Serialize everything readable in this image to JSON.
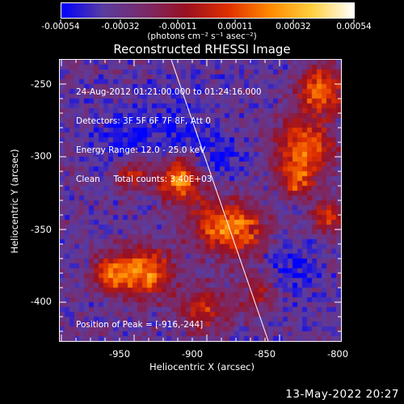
{
  "colorbar": {
    "labels": [
      "-0.00054",
      "-0.00032",
      "-0.00011",
      "0.00011",
      "0.00032",
      "0.00054"
    ],
    "units": "(photons cm⁻² s⁻¹ asec⁻²)"
  },
  "title": "Reconstructed RHESSI Image",
  "info_lines": [
    "24-Aug-2012 01:21:00.000 to 01:24:16.000",
    "Detectors: 3F 5F 6F 7F 8F, Att 0",
    "Energy Range: 12.0 - 25.0 keV",
    "Clean     Total counts: 3.40E+03"
  ],
  "peak_text": "Position of Peak = [-916,-244]",
  "axes": {
    "xlabel": "Heliocentric X (arcsec)",
    "ylabel": "Heliocentric Y (arcsec)",
    "xticks": [
      "-950",
      "-900",
      "-850",
      "-800"
    ],
    "yticks": [
      "-250",
      "-300",
      "-350",
      "-400"
    ]
  },
  "timestamp": "13-May-2022 20:27",
  "colors": {
    "background": "#000000",
    "foreground": "#ffffff",
    "colormap": [
      "#0000ff",
      "#5a3ca0",
      "#7a2a6a",
      "#9a1020",
      "#e03000",
      "#ff8a00",
      "#ffd040",
      "#ffffff"
    ]
  }
}
